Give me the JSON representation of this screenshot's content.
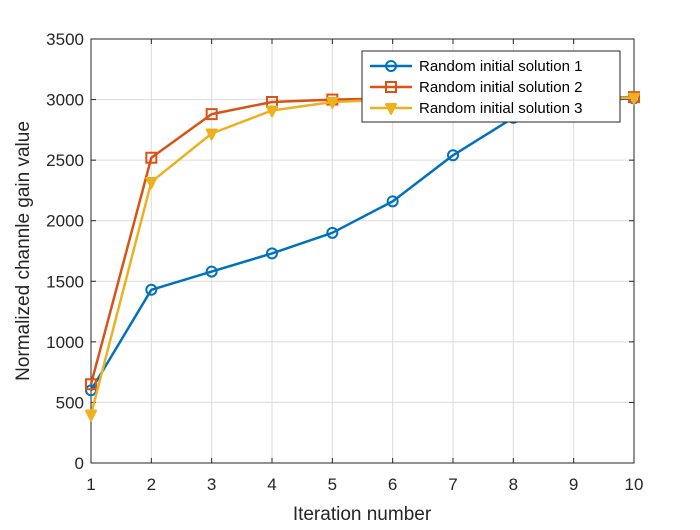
{
  "chart_data": {
    "type": "line",
    "title": "",
    "xlabel": "Iteration number",
    "ylabel": "Normalized channle gain value",
    "xlim": [
      1,
      10
    ],
    "ylim": [
      0,
      3500
    ],
    "xticks": [
      1,
      2,
      3,
      4,
      5,
      6,
      7,
      8,
      9,
      10
    ],
    "yticks": [
      0,
      500,
      1000,
      1500,
      2000,
      2500,
      3000,
      3500
    ],
    "grid": true,
    "legend_position": "top-right",
    "x": [
      1,
      2,
      3,
      4,
      5,
      6,
      7,
      8,
      9,
      10
    ],
    "series": [
      {
        "name": "Random initial solution 1",
        "color": "#0072BD",
        "marker": "circle",
        "values": [
          600,
          1430,
          1580,
          1730,
          1900,
          2160,
          2540,
          2850,
          2990,
          3010
        ]
      },
      {
        "name": "Random initial solution 2",
        "color": "#D95319",
        "marker": "square",
        "values": [
          650,
          2520,
          2880,
          2980,
          3000,
          3010,
          3010,
          3010,
          3015,
          3020
        ]
      },
      {
        "name": "Random initial solution 3",
        "color": "#EDB120",
        "marker": "triangle-down",
        "values": [
          400,
          2320,
          2720,
          2910,
          2980,
          3000,
          3005,
          3010,
          3015,
          3015
        ]
      }
    ]
  }
}
